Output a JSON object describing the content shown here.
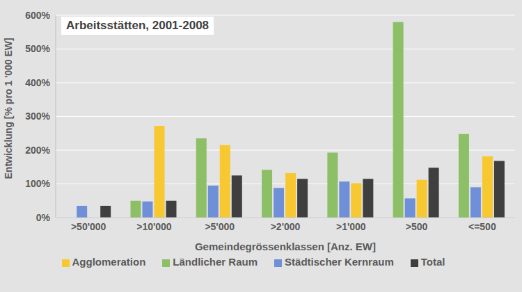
{
  "chart_data": {
    "type": "bar",
    "title": "Arbeitsstätten, 2001-2008",
    "x_label": "Gemeindegrössenklassen [Anz. EW]",
    "y_label": "Entwicklung [% pro 1 '000 EW]",
    "categories": [
      ">50'000",
      ">10'000",
      ">5'000",
      ">2'000",
      ">1'000",
      ">500",
      "<=500"
    ],
    "series": [
      {
        "name": "Ländlicher Raum",
        "color": "#8dbf67",
        "values": [
          null,
          50,
          235,
          142,
          193,
          580,
          248
        ]
      },
      {
        "name": "Städtischer Kernraum",
        "color": "#6f8fd8",
        "values": [
          35,
          48,
          95,
          88,
          107,
          57,
          90
        ]
      },
      {
        "name": "Agglomeration",
        "color": "#f7c82f",
        "values": [
          null,
          272,
          215,
          132,
          102,
          112,
          182
        ]
      },
      {
        "name": "Total",
        "color": "#3f3f3f",
        "values": [
          35,
          50,
          125,
          115,
          115,
          148,
          168
        ]
      }
    ],
    "ylim": [
      0,
      600
    ],
    "yticks": [
      {
        "value": 0,
        "label": "0%"
      },
      {
        "value": 100,
        "label": "100%"
      },
      {
        "value": 200,
        "label": "200%"
      },
      {
        "value": 300,
        "label": "300%"
      },
      {
        "value": 400,
        "label": "400%"
      },
      {
        "value": 500,
        "label": "500%"
      },
      {
        "value": 600,
        "label": "600%"
      }
    ],
    "grid": true,
    "legend": "bottom"
  }
}
